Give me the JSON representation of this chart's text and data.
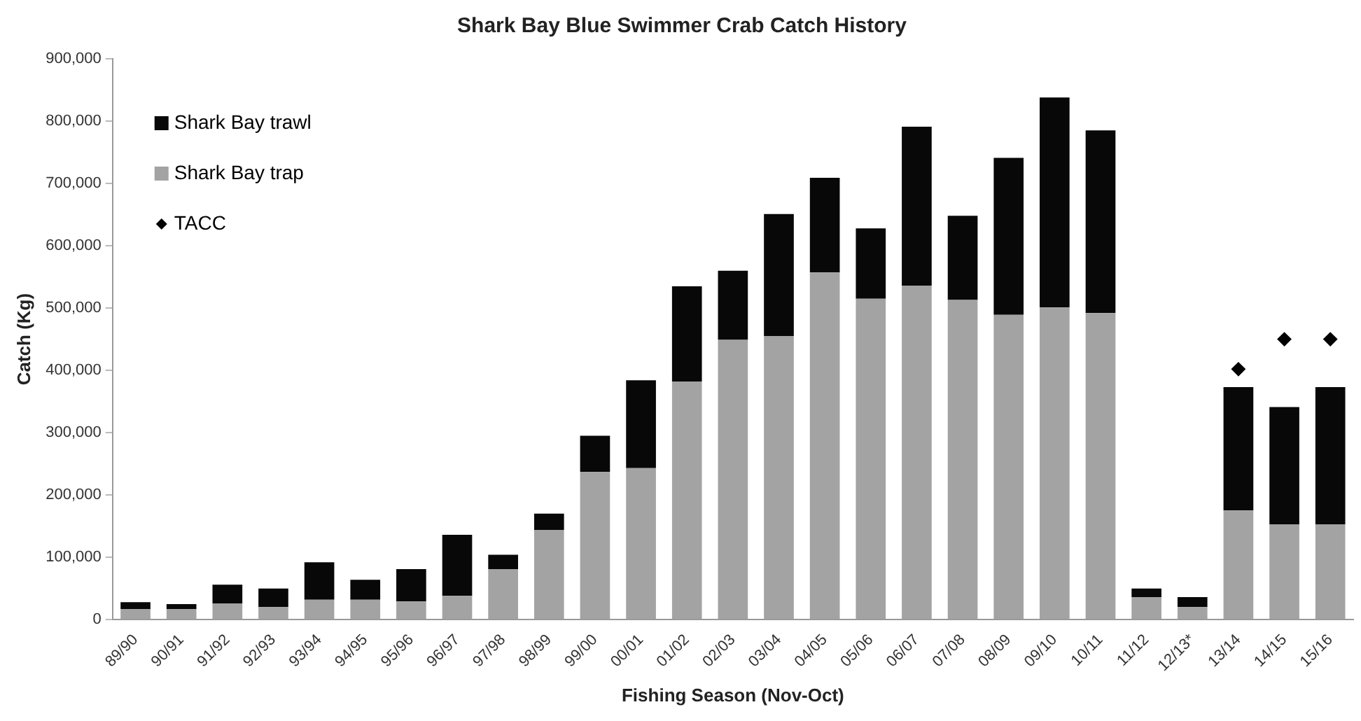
{
  "chart_data": {
    "type": "bar",
    "stacked": true,
    "title": "Shark Bay Blue Swimmer Crab Catch History",
    "xlabel": "Fishing Season (Nov-Oct)",
    "ylabel": "Catch (Kg)",
    "categories": [
      "89/90",
      "90/91",
      "91/92",
      "92/93",
      "93/94",
      "94/95",
      "95/96",
      "96/97",
      "97/98",
      "98/99",
      "99/00",
      "00/01",
      "01/02",
      "02/03",
      "03/04",
      "04/05",
      "05/06",
      "06/07",
      "07/08",
      "08/09",
      "09/10",
      "10/11",
      "11/12",
      "12/13*",
      "13/14",
      "14/15",
      "15/16"
    ],
    "series": [
      {
        "name": "Shark Bay trap",
        "color": "#a3a3a3",
        "values": [
          17000,
          17000,
          26000,
          20000,
          32000,
          32000,
          29000,
          38000,
          81000,
          144000,
          237000,
          243000,
          382000,
          449000,
          455000,
          557000,
          515000,
          536000,
          513000,
          489000,
          501000,
          492000,
          36000,
          20000,
          175000,
          153000,
          153000
        ]
      },
      {
        "name": "Shark Bay trawl",
        "color": "#080808",
        "values": [
          11000,
          8000,
          30000,
          30000,
          60000,
          32000,
          52000,
          98000,
          23000,
          26000,
          58000,
          141000,
          153000,
          111000,
          196000,
          152000,
          113000,
          255000,
          135000,
          252000,
          337000,
          293000,
          14000,
          16000,
          198000,
          188000,
          220000
        ]
      },
      {
        "name": "TACC",
        "type": "scatter",
        "marker": "diamond",
        "color": "#000000",
        "x": [
          "13/14",
          "14/15",
          "15/16"
        ],
        "values": [
          402000,
          450000,
          450000
        ]
      }
    ],
    "ylim": [
      0,
      900000
    ],
    "yticks": [
      {
        "value": 0,
        "label": "0"
      },
      {
        "value": 100000,
        "label": "100,000"
      },
      {
        "value": 200000,
        "label": "200,000"
      },
      {
        "value": 300000,
        "label": "300,000"
      },
      {
        "value": 400000,
        "label": "400,000"
      },
      {
        "value": 500000,
        "label": "500,000"
      },
      {
        "value": 600000,
        "label": "600,000"
      },
      {
        "value": 700000,
        "label": "700,000"
      },
      {
        "value": 800000,
        "label": "800,000"
      },
      {
        "value": 900000,
        "label": "900,000"
      }
    ],
    "grid": false,
    "legend": "top left"
  }
}
